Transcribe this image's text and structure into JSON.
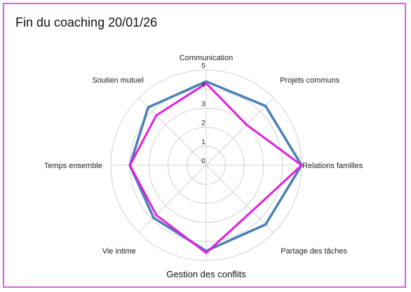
{
  "chart_data": {
    "type": "radar",
    "title": "Fin du coaching 20/01/26",
    "categories": [
      "Communication",
      "Projets communs",
      "Relations familles",
      "Partage des tâches",
      "Gestion des conflits",
      "Vie intime",
      "Temps ensemble",
      "Soutien mutuel"
    ],
    "rlim": [
      0,
      5
    ],
    "ticks": [
      "0",
      "1",
      "2",
      "3",
      "4",
      "5"
    ],
    "grid": true,
    "legend": "none",
    "series": [
      {
        "color": "#4a7fb5",
        "values": [
          4.4,
          4.4,
          5.0,
          4.4,
          4.5,
          3.9,
          4.0,
          4.3
        ]
      },
      {
        "color": "#e020e0",
        "values": [
          4.3,
          3.0,
          5.0,
          3.4,
          4.6,
          3.7,
          4.0,
          3.7
        ]
      }
    ]
  }
}
